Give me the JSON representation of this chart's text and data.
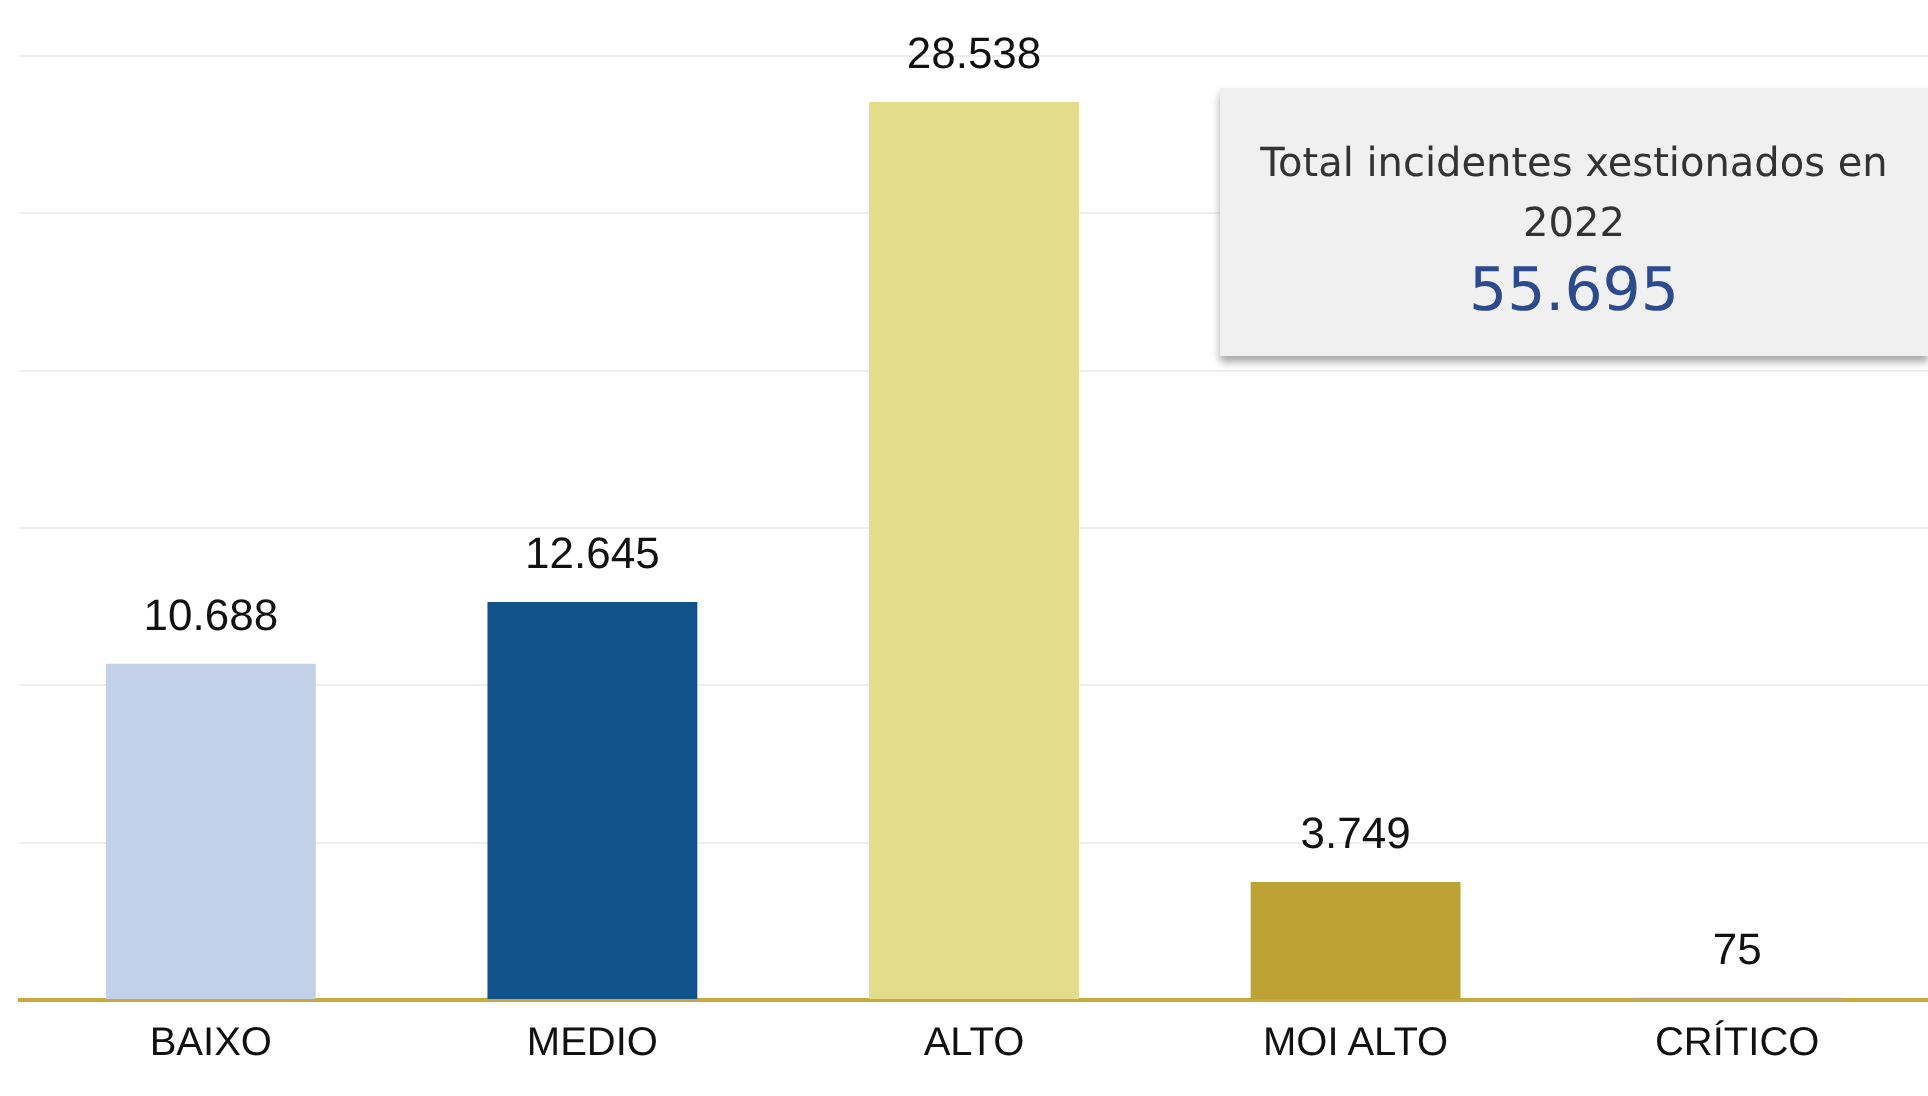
{
  "chart_data": {
    "type": "bar",
    "categories": [
      "BAIXO",
      "MEDIO",
      "ALTO",
      "MOI ALTO",
      "CRÍTICO"
    ],
    "values": [
      10688,
      12645,
      28538,
      3749,
      75
    ],
    "colors": [
      "#c2d1e8",
      "#105289",
      "#e2dc8b",
      "#bea234",
      "#b8a880"
    ],
    "value_labels": [
      "10.688",
      "12.645",
      "28.538",
      "3.749",
      "75"
    ],
    "ylim": [
      0,
      30000
    ],
    "yticks": [
      {
        "value": 0,
        "label": null
      },
      {
        "value": 5000,
        "label": null
      },
      {
        "value": 10000,
        "label": null
      },
      {
        "value": 15000,
        "label": null
      },
      {
        "value": 20000,
        "label": null
      },
      {
        "value": 25000,
        "label": null
      },
      {
        "value": 30000,
        "label": null
      }
    ],
    "grid": "y",
    "tick_labels": "x",
    "annotations": [
      "Total incidentes xestionados en 2022",
      "55.695"
    ]
  }
}
